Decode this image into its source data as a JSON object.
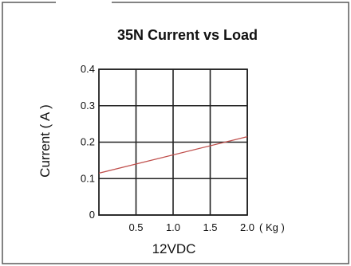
{
  "chart_data": {
    "type": "line",
    "title": "35N Current vs Load",
    "xlabel": "12VDC",
    "ylabel": "Current ( A )",
    "x_unit": "( Kg )",
    "xlim": [
      0,
      2.0
    ],
    "ylim": [
      0,
      0.4
    ],
    "x_ticks": [
      "0.5",
      "1.0",
      "1.5",
      "2.0"
    ],
    "y_ticks": [
      "0",
      "0.1",
      "0.2",
      "0.3",
      "0.4"
    ],
    "grid": true,
    "series": [
      {
        "x": [
          0,
          2.0
        ],
        "y": [
          0.115,
          0.215
        ],
        "color": "#c0504d"
      }
    ]
  },
  "colors": {
    "frame": "#5a5a5a",
    "grid": "#222222",
    "line": "#c0504d"
  }
}
